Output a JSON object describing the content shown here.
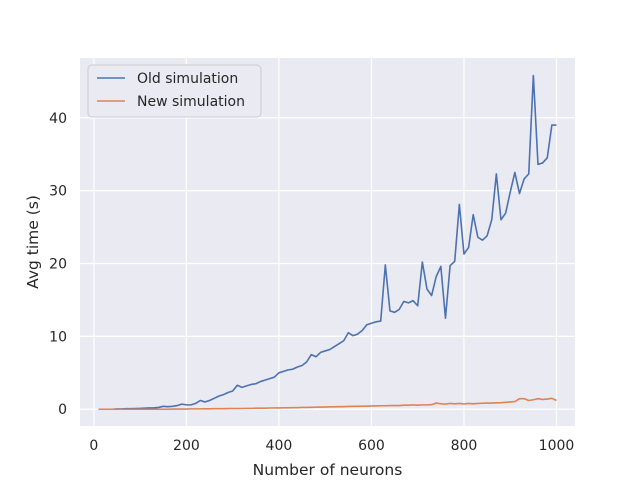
{
  "chart_data": {
    "type": "line",
    "xlabel": "Number of neurons",
    "ylabel": "Avg time (s)",
    "xlim": [
      -30,
      1040
    ],
    "ylim": [
      -2.3,
      48.2
    ],
    "x_ticks": [
      0,
      200,
      400,
      600,
      800,
      1000
    ],
    "y_ticks": [
      0,
      10,
      20,
      30,
      40
    ],
    "grid": true,
    "legend_position": "top-left",
    "background": "#eaeaf2",
    "x": [
      10,
      20,
      30,
      40,
      50,
      60,
      70,
      80,
      90,
      100,
      110,
      120,
      130,
      140,
      150,
      160,
      170,
      180,
      190,
      200,
      210,
      220,
      230,
      240,
      250,
      260,
      270,
      280,
      290,
      300,
      310,
      320,
      330,
      340,
      350,
      360,
      370,
      380,
      390,
      400,
      410,
      420,
      430,
      440,
      450,
      460,
      470,
      480,
      490,
      500,
      510,
      520,
      530,
      540,
      550,
      560,
      570,
      580,
      590,
      600,
      610,
      620,
      630,
      640,
      650,
      660,
      670,
      680,
      690,
      700,
      710,
      720,
      730,
      740,
      750,
      760,
      770,
      780,
      790,
      800,
      810,
      820,
      830,
      840,
      850,
      860,
      870,
      880,
      890,
      900,
      910,
      920,
      930,
      940,
      950,
      960,
      970,
      980,
      990,
      1000
    ],
    "series": [
      {
        "name": "Old simulation",
        "color": "#4c72b0",
        "values": [
          0,
          0,
          0,
          0,
          0.05,
          0.05,
          0.08,
          0.08,
          0.1,
          0.12,
          0.15,
          0.18,
          0.2,
          0.25,
          0.4,
          0.35,
          0.4,
          0.5,
          0.7,
          0.6,
          0.6,
          0.8,
          1.2,
          1.0,
          1.2,
          1.5,
          1.8,
          2.0,
          2.3,
          2.5,
          3.3,
          3.0,
          3.2,
          3.4,
          3.5,
          3.8,
          4.0,
          4.2,
          4.4,
          5.0,
          5.2,
          5.4,
          5.5,
          5.8,
          6.0,
          6.5,
          7.5,
          7.2,
          7.8,
          8.0,
          8.2,
          8.6,
          9.0,
          9.4,
          10.5,
          10.1,
          10.3,
          10.8,
          11.6,
          11.8,
          12.0,
          12.1,
          19.8,
          13.5,
          13.3,
          13.7,
          14.8,
          14.6,
          14.9,
          14.2,
          20.2,
          16.5,
          15.6,
          18.2,
          19.6,
          12.5,
          19.7,
          20.3,
          28.1,
          21.3,
          22.2,
          26.7,
          23.6,
          23.2,
          23.8,
          26.0,
          32.3,
          26.0,
          26.9,
          29.8,
          32.5,
          29.6,
          31.6,
          32.3,
          45.8,
          33.6,
          33.8,
          34.5,
          39.0,
          39.0
        ]
      },
      {
        "name": "New simulation",
        "color": "#dd8452",
        "values": [
          0,
          0,
          0,
          0,
          0,
          0,
          0,
          0,
          0,
          0,
          0,
          0,
          0,
          0,
          0,
          0,
          0.02,
          0.02,
          0.03,
          0.03,
          0.05,
          0.05,
          0.05,
          0.06,
          0.06,
          0.07,
          0.08,
          0.08,
          0.09,
          0.1,
          0.1,
          0.1,
          0.12,
          0.12,
          0.14,
          0.15,
          0.15,
          0.17,
          0.18,
          0.18,
          0.2,
          0.2,
          0.22,
          0.22,
          0.25,
          0.25,
          0.26,
          0.28,
          0.3,
          0.3,
          0.33,
          0.33,
          0.35,
          0.35,
          0.38,
          0.4,
          0.4,
          0.42,
          0.42,
          0.45,
          0.45,
          0.48,
          0.48,
          0.5,
          0.5,
          0.5,
          0.55,
          0.55,
          0.6,
          0.55,
          0.6,
          0.6,
          0.62,
          0.85,
          0.75,
          0.7,
          0.8,
          0.75,
          0.8,
          0.72,
          0.8,
          0.75,
          0.8,
          0.82,
          0.85,
          0.85,
          0.88,
          0.9,
          0.95,
          1.0,
          1.05,
          1.45,
          1.45,
          1.2,
          1.3,
          1.45,
          1.35,
          1.4,
          1.5,
          1.2
        ]
      }
    ]
  }
}
